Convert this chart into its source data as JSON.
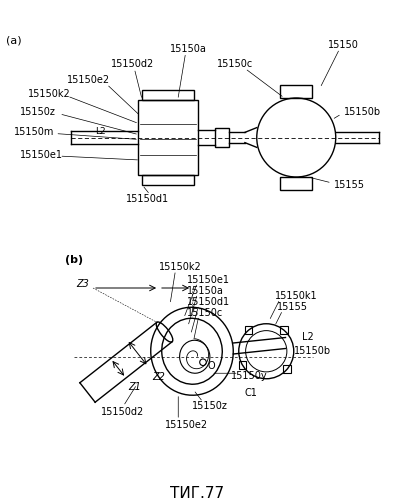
{
  "background_color": "#ffffff",
  "line_color": "#000000",
  "figure_title": "ΤИГ.77",
  "label_a": "(a)",
  "label_b": "(b)",
  "font_size_small": 7.0,
  "font_size_title": 11
}
